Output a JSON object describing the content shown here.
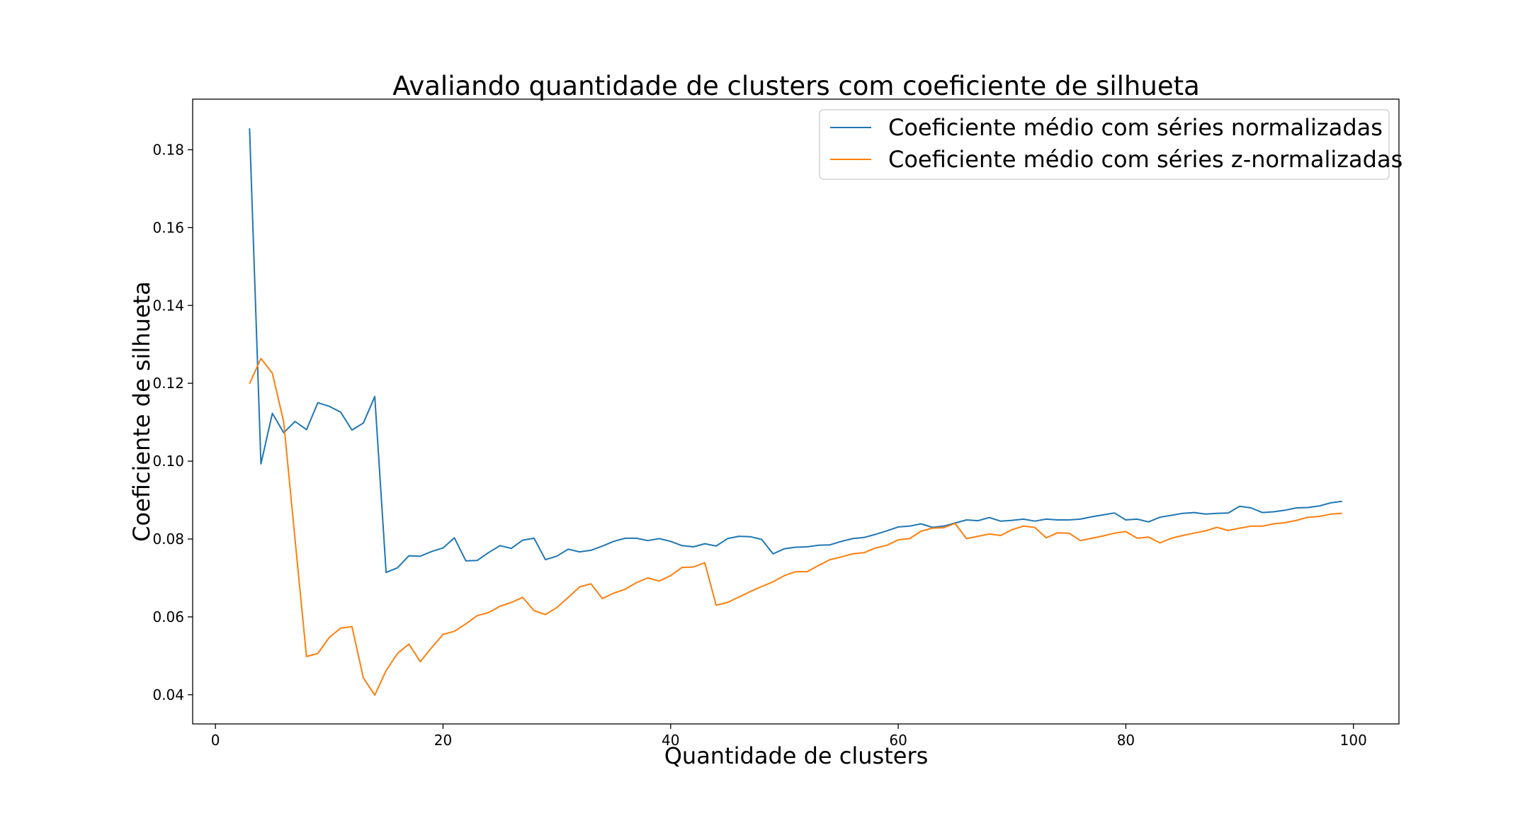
{
  "chart_data": {
    "type": "line",
    "title": "Avaliando quantidade de clusters com coeficiente de silhueta",
    "xlabel": "Quantidade de clusters",
    "ylabel": "Coeficiente de silhueta",
    "xlim": [
      -2,
      104
    ],
    "ylim": [
      0.0325,
      0.193
    ],
    "xticks": [
      0,
      20,
      40,
      60,
      80,
      100
    ],
    "yticks": [
      0.04,
      0.06,
      0.08,
      0.1,
      0.12,
      0.14,
      0.16,
      0.18
    ],
    "ytick_labels": [
      "0.04",
      "0.06",
      "0.08",
      "0.10",
      "0.12",
      "0.14",
      "0.16",
      "0.18"
    ],
    "grid": false,
    "legend_position": "top-right",
    "x": [
      3,
      4,
      5,
      6,
      7,
      8,
      9,
      10,
      11,
      12,
      13,
      14,
      15,
      16,
      17,
      18,
      19,
      20,
      21,
      22,
      23,
      24,
      25,
      26,
      27,
      28,
      29,
      30,
      31,
      32,
      33,
      34,
      35,
      36,
      37,
      38,
      39,
      40,
      41,
      42,
      43,
      44,
      45,
      46,
      47,
      48,
      49,
      50,
      51,
      52,
      53,
      54,
      55,
      56,
      57,
      58,
      59,
      60,
      61,
      62,
      63,
      64,
      65,
      66,
      67,
      68,
      69,
      70,
      71,
      72,
      73,
      74,
      75,
      76,
      77,
      78,
      79,
      80,
      81,
      82,
      83,
      84,
      85,
      86,
      87,
      88,
      89,
      90,
      91,
      92,
      93,
      94,
      95,
      96,
      97,
      98,
      99
    ],
    "series": [
      {
        "name": "Coeficiente médio com séries normalizadas",
        "color": "#1f77b4",
        "values": [
          0.1855,
          0.0993,
          0.1123,
          0.1073,
          0.1102,
          0.1081,
          0.115,
          0.1141,
          0.1126,
          0.108,
          0.1098,
          0.1166,
          0.0714,
          0.0726,
          0.0757,
          0.0756,
          0.0768,
          0.0777,
          0.0803,
          0.0744,
          0.0745,
          0.0765,
          0.0783,
          0.0776,
          0.0797,
          0.0802,
          0.0747,
          0.0756,
          0.0774,
          0.0767,
          0.0771,
          0.0782,
          0.0794,
          0.0802,
          0.0802,
          0.0796,
          0.0801,
          0.0794,
          0.0783,
          0.078,
          0.0788,
          0.0782,
          0.0801,
          0.0807,
          0.0806,
          0.0799,
          0.0762,
          0.0775,
          0.0779,
          0.078,
          0.0784,
          0.0785,
          0.0794,
          0.0801,
          0.0804,
          0.0812,
          0.0821,
          0.0831,
          0.0833,
          0.0839,
          0.083,
          0.0833,
          0.0841,
          0.0849,
          0.0847,
          0.0855,
          0.0846,
          0.0848,
          0.0851,
          0.0846,
          0.0851,
          0.0849,
          0.0849,
          0.0851,
          0.0857,
          0.0862,
          0.0867,
          0.0849,
          0.0851,
          0.0844,
          0.0856,
          0.0861,
          0.0866,
          0.0868,
          0.0864,
          0.0866,
          0.0867,
          0.0884,
          0.088,
          0.0868,
          0.087,
          0.0874,
          0.088,
          0.0881,
          0.0885,
          0.0893,
          0.0897
        ]
      },
      {
        "name": "Coeficiente médio com séries z-normalizadas",
        "color": "#ff7f0e",
        "values": [
          0.1199,
          0.1264,
          0.1226,
          0.1101,
          0.0798,
          0.0498,
          0.0506,
          0.0547,
          0.0571,
          0.0575,
          0.0443,
          0.0399,
          0.0462,
          0.0506,
          0.053,
          0.0485,
          0.0521,
          0.0555,
          0.0563,
          0.0582,
          0.0603,
          0.0611,
          0.0627,
          0.0637,
          0.065,
          0.0616,
          0.0606,
          0.0624,
          0.065,
          0.0677,
          0.0685,
          0.0647,
          0.0661,
          0.0671,
          0.0688,
          0.07,
          0.0692,
          0.0706,
          0.0727,
          0.0728,
          0.0739,
          0.063,
          0.0637,
          0.0651,
          0.0665,
          0.0678,
          0.069,
          0.0706,
          0.0716,
          0.0716,
          0.0732,
          0.0747,
          0.0754,
          0.0762,
          0.0765,
          0.0777,
          0.0784,
          0.0798,
          0.0801,
          0.082,
          0.0828,
          0.0829,
          0.084,
          0.0801,
          0.0807,
          0.0813,
          0.0809,
          0.0824,
          0.0833,
          0.083,
          0.0803,
          0.0816,
          0.0815,
          0.0796,
          0.0802,
          0.0808,
          0.0815,
          0.0819,
          0.0802,
          0.0805,
          0.079,
          0.0802,
          0.0809,
          0.0815,
          0.0821,
          0.083,
          0.0822,
          0.0828,
          0.0833,
          0.0833,
          0.0839,
          0.0842,
          0.0848,
          0.0856,
          0.0858,
          0.0864,
          0.0866
        ]
      }
    ]
  }
}
